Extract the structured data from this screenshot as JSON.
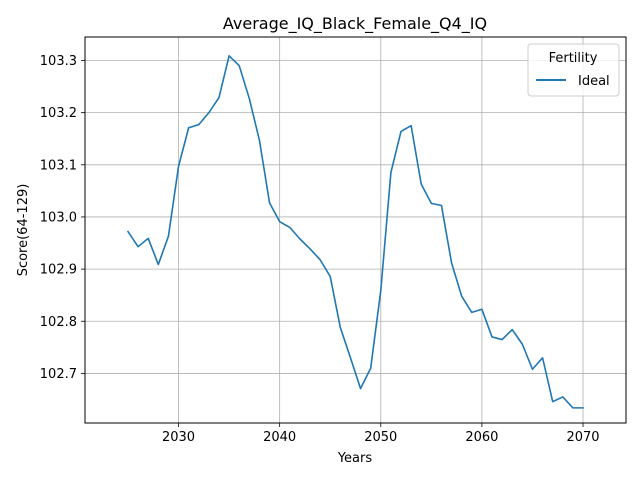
{
  "chart_data": {
    "type": "line",
    "title": "Average_IQ_Black_Female_Q4_IQ",
    "xlabel": "Years",
    "ylabel": "Score(64-129)",
    "xlim": [
      2020.75,
      2074.25
    ],
    "ylim": [
      102.605,
      103.345
    ],
    "xticks": [
      2030,
      2040,
      2050,
      2060,
      2070
    ],
    "yticks": [
      102.7,
      102.8,
      102.9,
      103.0,
      103.1,
      103.2,
      103.3
    ],
    "xtick_labels": [
      "2030",
      "2040",
      "2050",
      "2060",
      "2070"
    ],
    "ytick_labels": [
      "102.7",
      "102.8",
      "102.9",
      "103.0",
      "103.1",
      "103.2",
      "103.3"
    ],
    "grid": true,
    "legend": {
      "title": "Fertility",
      "placement": "top-right"
    },
    "series": [
      {
        "name": "Ideal",
        "color": "#1f77b4",
        "x": [
          2025,
          2026,
          2027,
          2028,
          2029,
          2030,
          2031,
          2032,
          2033,
          2034,
          2035,
          2036,
          2037,
          2038,
          2039,
          2040,
          2041,
          2042,
          2043,
          2044,
          2045,
          2046,
          2047,
          2048,
          2049,
          2050,
          2051,
          2052,
          2053,
          2054,
          2055,
          2056,
          2057,
          2058,
          2059,
          2060,
          2061,
          2062,
          2063,
          2064,
          2065,
          2066,
          2067,
          2068,
          2069,
          2070
        ],
        "y": [
          102.972,
          102.943,
          102.959,
          102.909,
          102.963,
          103.097,
          103.171,
          103.177,
          103.2,
          103.229,
          103.309,
          103.29,
          103.227,
          103.147,
          103.027,
          102.991,
          102.98,
          102.958,
          102.939,
          102.918,
          102.886,
          102.788,
          102.73,
          102.671,
          102.71,
          102.859,
          103.085,
          103.164,
          103.175,
          103.063,
          103.026,
          103.022,
          102.912,
          102.848,
          102.817,
          102.823,
          102.77,
          102.765,
          102.784,
          102.756,
          102.708,
          102.73,
          102.646,
          102.655,
          102.634,
          102.634
        ]
      }
    ]
  }
}
